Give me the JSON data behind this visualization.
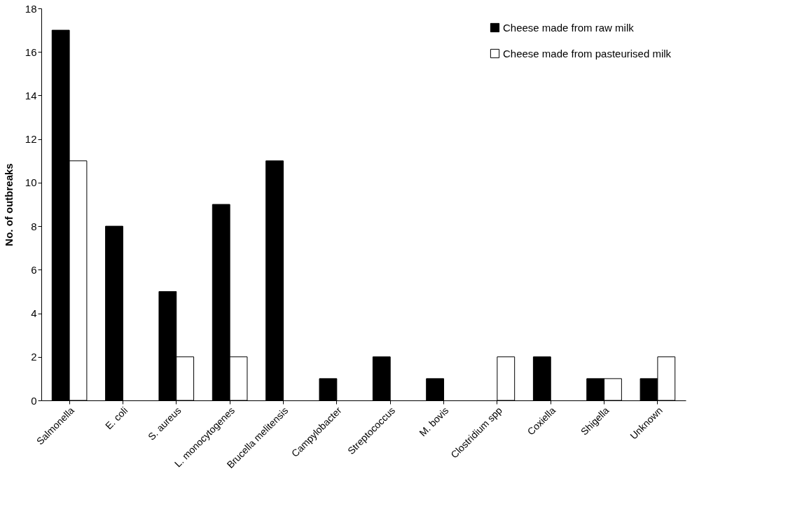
{
  "chart_data": {
    "type": "bar",
    "ylabel": "No. of outbreaks",
    "categories": [
      "Salmonella",
      "E. coli",
      "S. aureus",
      "L. monocytogenes",
      "Brucella melitensis",
      "Campylobacter",
      "Streptococcus",
      "M. bovis",
      "Clostridium spp",
      "Coxiella",
      "Shigella",
      "Unknown"
    ],
    "series": [
      {
        "name": "Cheese made from raw milk",
        "color": "#000000",
        "values": [
          17,
          8,
          5,
          9,
          11,
          1,
          2,
          1,
          null,
          2,
          1,
          1
        ]
      },
      {
        "name": "Cheese made from pasteurised milk",
        "color": "#ffffff",
        "values": [
          11,
          null,
          2,
          2,
          null,
          null,
          null,
          null,
          2,
          null,
          1,
          2
        ]
      }
    ],
    "ylim": [
      0,
      18
    ],
    "yticks": [
      0,
      2,
      4,
      6,
      8,
      10,
      12,
      14,
      16,
      18
    ],
    "grid": false,
    "legend": "top right"
  }
}
